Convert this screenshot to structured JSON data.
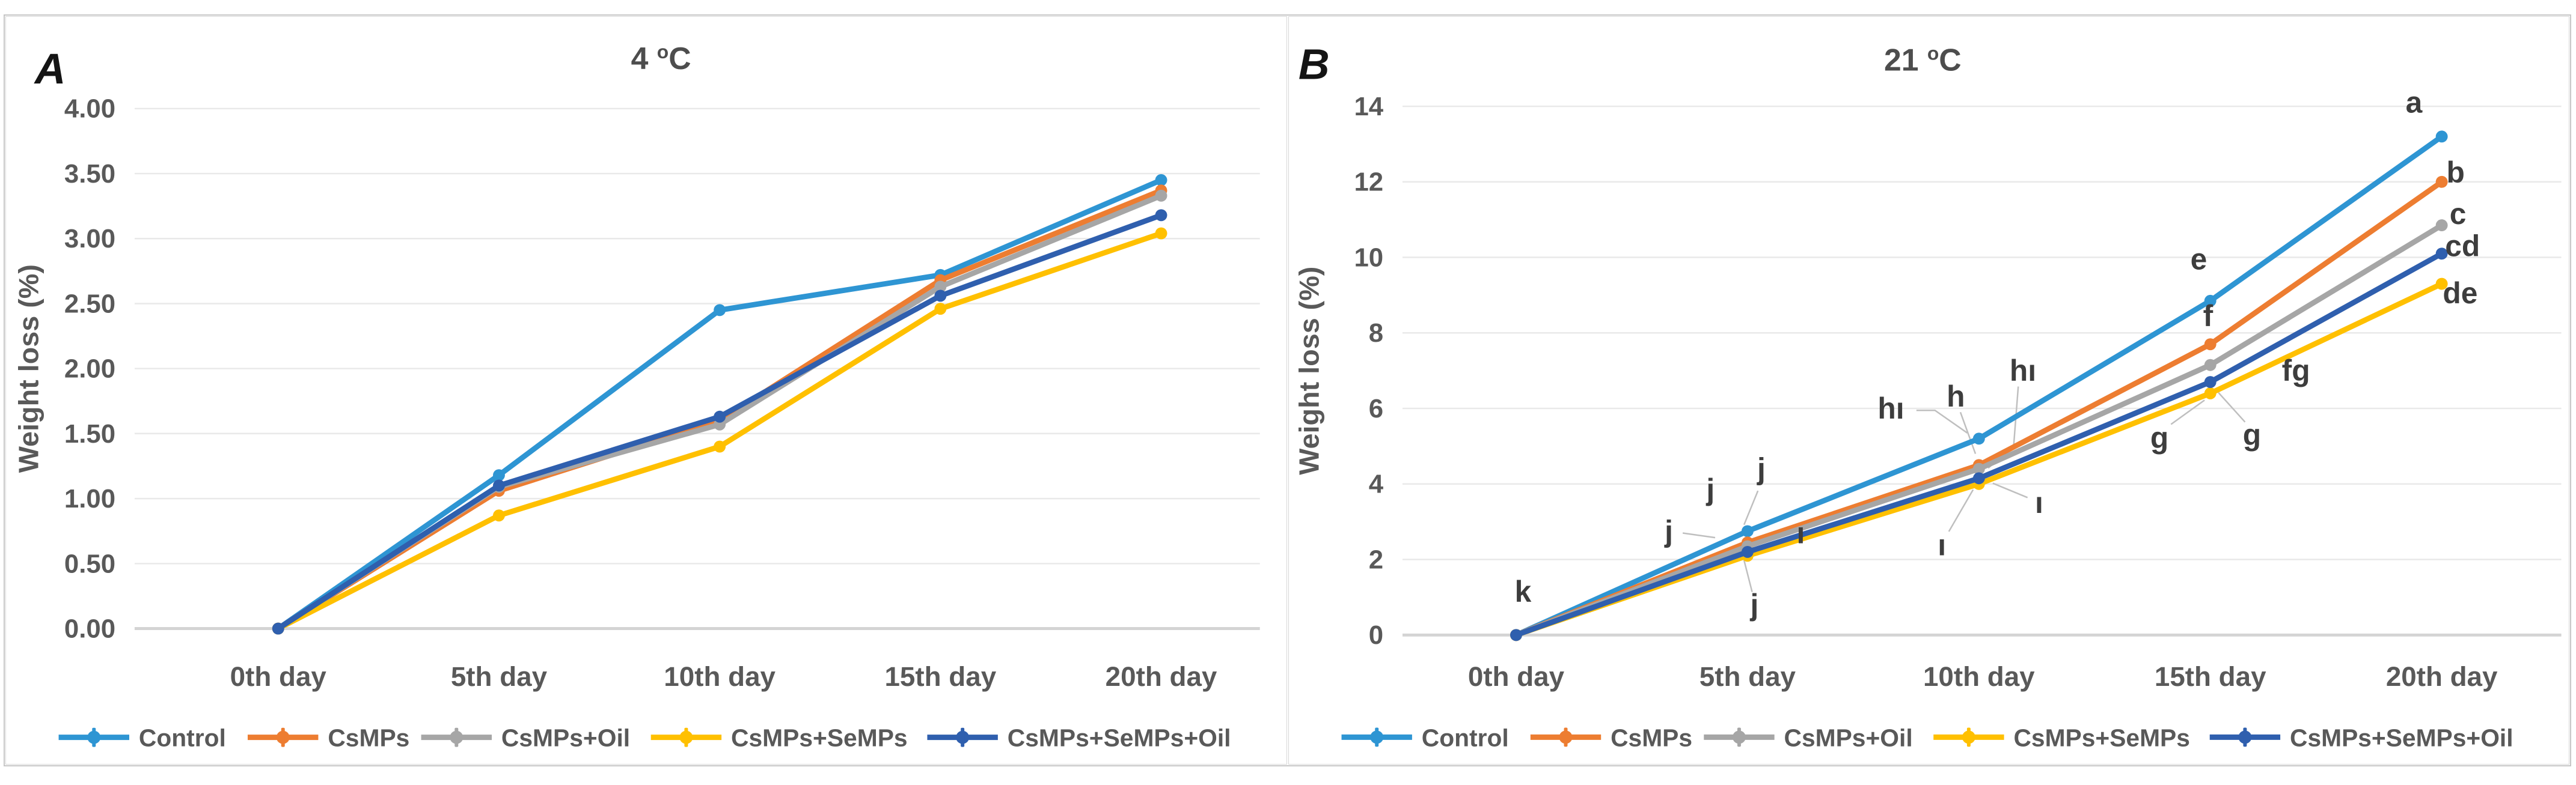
{
  "figure": {
    "background": "#ffffff",
    "outer_border_color": "#c6c6c6",
    "panel_border_color": "#d7d7d7"
  },
  "styles": {
    "grid_color": "#e9e9e9",
    "axis_line_color": "#d4d4d4",
    "tick_label_color": "#595959",
    "axis_title_color": "#595959",
    "panel_title_color": "#4d4d4d",
    "panel_label_color": "#141414",
    "letter_color": "#3d3d3d",
    "leader_color": "#bfbfbf",
    "legend_text_color": "#595959"
  },
  "chart_data": [
    {
      "type": "line",
      "panel_label": "A",
      "title": {
        "value": "4",
        "degree": "o",
        "unit": "C"
      },
      "xlabel": "",
      "ylabel": "Weight loss (%)",
      "ylim": [
        0,
        4
      ],
      "ystep": 0.5,
      "y_decimals": 2,
      "grid": true,
      "legend_position": "bottom",
      "categories": [
        "0th day",
        "5th day",
        "10th day",
        "15th day",
        "20th day"
      ],
      "series": [
        {
          "name": "Control",
          "color": "#2e95d3",
          "values": [
            0.0,
            1.18,
            2.45,
            2.72,
            3.45
          ]
        },
        {
          "name": "CsMPs",
          "color": "#ed7d31",
          "values": [
            0.0,
            1.06,
            1.6,
            2.68,
            3.37
          ]
        },
        {
          "name": "CsMPs+Oil",
          "color": "#a6a6a6",
          "values": [
            0.0,
            1.09,
            1.57,
            2.63,
            3.33
          ]
        },
        {
          "name": "CsMPs+SeMPs",
          "color": "#ffc000",
          "values": [
            0.0,
            0.87,
            1.4,
            2.46,
            3.04
          ]
        },
        {
          "name": "CsMPs+SeMPs+Oil",
          "color": "#2f5fae",
          "values": [
            0.0,
            1.1,
            1.63,
            2.56,
            3.18
          ]
        }
      ],
      "annotations": []
    },
    {
      "type": "line",
      "panel_label": "B",
      "title": {
        "value": "21",
        "degree": "o",
        "unit": "C"
      },
      "xlabel": "",
      "ylabel": "Weight loss (%)",
      "ylim": [
        0,
        14
      ],
      "ystep": 2,
      "y_decimals": 0,
      "grid": true,
      "legend_position": "bottom",
      "categories": [
        "0th day",
        "5th day",
        "10th day",
        "15th day",
        "20th day"
      ],
      "series": [
        {
          "name": "Control",
          "color": "#2e95d3",
          "values": [
            0,
            2.75,
            5.2,
            8.85,
            13.2
          ]
        },
        {
          "name": "CsMPs",
          "color": "#ed7d31",
          "values": [
            0,
            2.45,
            4.5,
            7.7,
            12.0
          ]
        },
        {
          "name": "CsMPs+Oil",
          "color": "#a6a6a6",
          "values": [
            0,
            2.35,
            4.4,
            7.15,
            10.85
          ]
        },
        {
          "name": "CsMPs+SeMPs",
          "color": "#ffc000",
          "values": [
            0,
            2.1,
            4.0,
            6.4,
            9.3
          ]
        },
        {
          "name": "CsMPs+SeMPs+Oil",
          "color": "#2f5fae",
          "values": [
            0,
            2.2,
            4.15,
            6.7,
            10.1
          ]
        }
      ],
      "annotations": [
        {
          "text": "k",
          "day": 0.03,
          "value": 1.15
        },
        {
          "text": "j",
          "day": 0.66,
          "value": 2.75,
          "leader": [
            [
              0.72,
              2.7
            ],
            [
              0.86,
              2.58
            ]
          ]
        },
        {
          "text": "j",
          "day": 0.84,
          "value": 3.85
        },
        {
          "text": "j",
          "day": 1.06,
          "value": 4.4,
          "leader": [
            [
              1.045,
              3.82
            ],
            [
              0.985,
              2.92
            ]
          ]
        },
        {
          "text": "j",
          "day": 1.03,
          "value": 0.8,
          "leader": [
            [
              1.02,
              1.14
            ],
            [
              0.985,
              1.98
            ]
          ]
        },
        {
          "text": "ı",
          "day": 1.23,
          "value": 2.7
        },
        {
          "text": "hı",
          "day": 1.62,
          "value": 6.0,
          "leader": [
            [
              1.73,
              5.95
            ],
            [
              1.81,
              5.95
            ],
            [
              1.95,
              5.35
            ]
          ]
        },
        {
          "text": "h",
          "day": 1.9,
          "value": 6.32,
          "leader": [
            [
              1.92,
              5.9
            ],
            [
              1.985,
              4.8
            ]
          ]
        },
        {
          "text": "hı",
          "day": 2.19,
          "value": 7.0,
          "leader": [
            [
              2.17,
              6.58
            ],
            [
              2.15,
              5.0
            ],
            [
              2.04,
              4.42
            ]
          ]
        },
        {
          "text": "ı",
          "day": 2.26,
          "value": 3.5,
          "leader": [
            [
              2.21,
              3.64
            ],
            [
              2.06,
              4.02
            ]
          ]
        },
        {
          "text": "ı",
          "day": 1.84,
          "value": 2.38,
          "leader": [
            [
              1.87,
              2.74
            ],
            [
              1.975,
              3.85
            ]
          ]
        },
        {
          "text": "e",
          "day": 2.95,
          "value": 9.95
        },
        {
          "text": "f",
          "day": 2.99,
          "value": 8.45
        },
        {
          "text": "fg",
          "day": 3.37,
          "value": 7.0
        },
        {
          "text": "g",
          "day": 2.78,
          "value": 5.22,
          "leader": [
            [
              2.83,
              5.58
            ],
            [
              2.975,
              6.22
            ]
          ]
        },
        {
          "text": "g",
          "day": 3.18,
          "value": 5.3,
          "leader": [
            [
              3.15,
              5.64
            ],
            [
              3.035,
              6.42
            ]
          ]
        },
        {
          "text": "a",
          "day": 3.88,
          "value": 14.1
        },
        {
          "text": "b",
          "day": 4.06,
          "value": 12.25
        },
        {
          "text": "c",
          "day": 4.07,
          "value": 11.15
        },
        {
          "text": "cd",
          "day": 4.09,
          "value": 10.3
        },
        {
          "text": "de",
          "day": 4.08,
          "value": 9.05
        }
      ]
    }
  ]
}
